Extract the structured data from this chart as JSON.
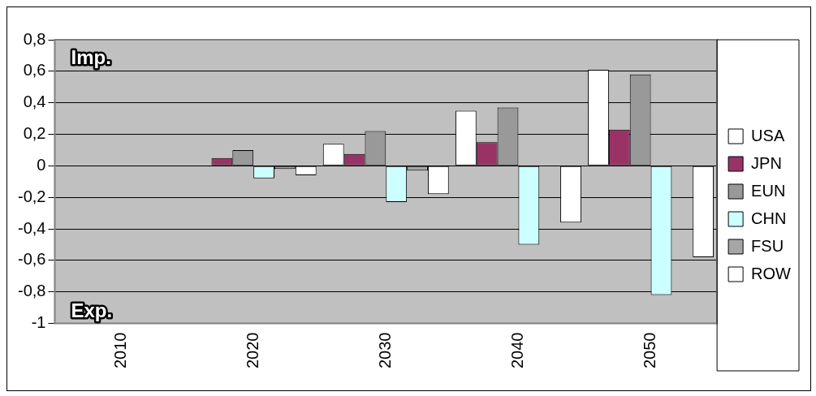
{
  "chart_data": {
    "type": "bar",
    "categories": [
      "2010",
      "2020",
      "2030",
      "2040",
      "2050"
    ],
    "series": [
      {
        "name": "USA",
        "color": "#ffffff",
        "values": [
          0,
          0,
          0.14,
          0.35,
          0.61
        ]
      },
      {
        "name": "JPN",
        "color": "#993366",
        "values": [
          0,
          0.05,
          0.075,
          0.15,
          0.23
        ]
      },
      {
        "name": "EUN",
        "color": "#999999",
        "values": [
          0,
          0.1,
          0.22,
          0.37,
          0.58
        ]
      },
      {
        "name": "CHN",
        "color": "#ccffff",
        "values": [
          0,
          -0.08,
          -0.23,
          -0.5,
          -0.82
        ]
      },
      {
        "name": "FSU",
        "color": "#a6a6a6",
        "values": [
          0,
          -0.02,
          -0.03,
          0,
          0
        ]
      },
      {
        "name": "ROW",
        "color": "#ffffff",
        "values": [
          0,
          -0.06,
          -0.18,
          -0.36,
          -0.58
        ]
      }
    ],
    "ylim": [
      -1,
      0.8
    ],
    "yticks": [
      {
        "value": 0.8,
        "label": "0,8"
      },
      {
        "value": 0.6,
        "label": "0,6"
      },
      {
        "value": 0.4,
        "label": "0,4"
      },
      {
        "value": 0.2,
        "label": "0,2"
      },
      0,
      {
        "value": -0.2,
        "label": "-0,2"
      },
      {
        "value": -0.4,
        "label": "-0,4"
      },
      {
        "value": -0.6,
        "label": "-0,6"
      },
      {
        "value": -0.8,
        "label": "-0,8"
      },
      -1
    ],
    "annotations": [
      "Imp.",
      "Exp."
    ],
    "grid": "y",
    "legend": "right"
  }
}
